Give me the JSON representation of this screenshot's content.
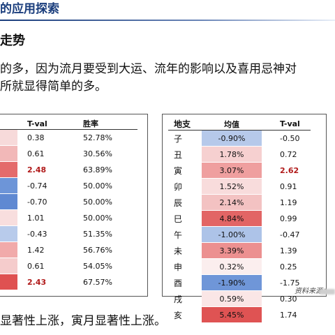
{
  "header": {
    "title": "的应用探索"
  },
  "section": {
    "title": "走势"
  },
  "paragraph": {
    "line1": "的多，因为流月要受到大运、流年的影响以及喜用忌神对",
    "line2": "所就显得简单的多。"
  },
  "left_table": {
    "headers": {
      "tval": "T-val",
      "win": "胜率"
    },
    "rows": [
      {
        "tval": "0.38",
        "win": "52.78%",
        "highlight": false,
        "color": "#f7dada"
      },
      {
        "tval": "0.61",
        "win": "30.56%",
        "highlight": false,
        "color": "#f2b8b8"
      },
      {
        "tval": "2.48",
        "win": "63.89%",
        "highlight": true,
        "color": "#e46b6b"
      },
      {
        "tval": "-0.74",
        "win": "50.00%",
        "highlight": false,
        "color": "#6d95d8"
      },
      {
        "tval": "-0.70",
        "win": "50.00%",
        "highlight": false,
        "color": "#5f89d2"
      },
      {
        "tval": "1.01",
        "win": "50.00%",
        "highlight": false,
        "color": "#f8dede"
      },
      {
        "tval": "-0.43",
        "win": "51.35%",
        "highlight": false,
        "color": "#b8cbeb"
      },
      {
        "tval": "1.42",
        "win": "56.76%",
        "highlight": false,
        "color": "#f1aaaa"
      },
      {
        "tval": "0.61",
        "win": "54.05%",
        "highlight": false,
        "color": "#f5cccc"
      },
      {
        "tval": "2.43",
        "win": "67.57%",
        "highlight": true,
        "color": "#df5151"
      }
    ]
  },
  "right_table": {
    "headers": {
      "branch": "地支",
      "mean": "均值",
      "tval": "T-val"
    },
    "rows": [
      {
        "branch": "子",
        "mean": "-0.90%",
        "tval": "-0.50",
        "highlight": false,
        "color": "#b6c9ea"
      },
      {
        "branch": "丑",
        "mean": "1.78%",
        "tval": "0.72",
        "highlight": false,
        "color": "#f6d0d0"
      },
      {
        "branch": "寅",
        "mean": "3.07%",
        "tval": "2.62",
        "highlight": true,
        "color": "#ef9f9f"
      },
      {
        "branch": "卯",
        "mean": "1.52%",
        "tval": "0.91",
        "highlight": false,
        "color": "#f8dcdc"
      },
      {
        "branch": "辰",
        "mean": "2.14%",
        "tval": "1.19",
        "highlight": false,
        "color": "#f3c2c2"
      },
      {
        "branch": "巳",
        "mean": "4.84%",
        "tval": "0.99",
        "highlight": false,
        "color": "#e26565"
      },
      {
        "branch": "午",
        "mean": "-1.00%",
        "tval": "-0.47",
        "highlight": false,
        "color": "#adc3e8"
      },
      {
        "branch": "未",
        "mean": "3.39%",
        "tval": "1.39",
        "highlight": false,
        "color": "#ec9090"
      },
      {
        "branch": "申",
        "mean": "0.32%",
        "tval": "0.25",
        "highlight": false,
        "color": "#fbeeee"
      },
      {
        "branch": "酉",
        "mean": "-1.90%",
        "tval": "-1.75",
        "highlight": false,
        "color": "#6f96d8"
      },
      {
        "branch": "戌",
        "mean": "0.59%",
        "tval": "0.30",
        "highlight": false,
        "color": "#fae6e6"
      },
      {
        "branch": "亥",
        "mean": "5.45%",
        "tval": "1.74",
        "highlight": false,
        "color": "#df5353"
      }
    ]
  },
  "source": {
    "label": "资料来源："
  },
  "footer": {
    "text": "显著性上涨，寅月显著性上涨。"
  }
}
